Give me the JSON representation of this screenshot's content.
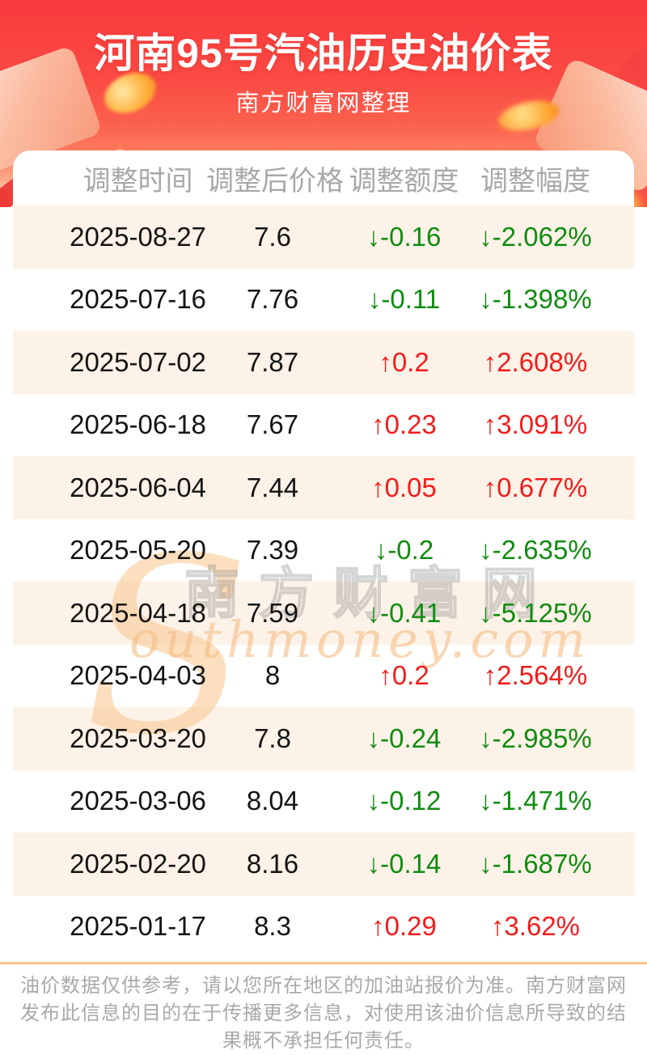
{
  "header": {
    "title": "河南95号汽油历史油价表",
    "subtitle": "南方财富网整理"
  },
  "table": {
    "columns": [
      "调整时间",
      "调整后价格",
      "调整额度",
      "调整幅度"
    ],
    "arrow_up": "↑",
    "arrow_down": "↓",
    "rows": [
      {
        "date": "2025-08-27",
        "price": "7.6",
        "change": "-0.16",
        "pct": "-2.062%",
        "dir": "down"
      },
      {
        "date": "2025-07-16",
        "price": "7.76",
        "change": "-0.11",
        "pct": "-1.398%",
        "dir": "down"
      },
      {
        "date": "2025-07-02",
        "price": "7.87",
        "change": "0.2",
        "pct": "2.608%",
        "dir": "up"
      },
      {
        "date": "2025-06-18",
        "price": "7.67",
        "change": "0.23",
        "pct": "3.091%",
        "dir": "up"
      },
      {
        "date": "2025-06-04",
        "price": "7.44",
        "change": "0.05",
        "pct": "0.677%",
        "dir": "up"
      },
      {
        "date": "2025-05-20",
        "price": "7.39",
        "change": "-0.2",
        "pct": "-2.635%",
        "dir": "down"
      },
      {
        "date": "2025-04-18",
        "price": "7.59",
        "change": "-0.41",
        "pct": "-5.125%",
        "dir": "down"
      },
      {
        "date": "2025-04-03",
        "price": "8",
        "change": "0.2",
        "pct": "2.564%",
        "dir": "up"
      },
      {
        "date": "2025-03-20",
        "price": "7.8",
        "change": "-0.24",
        "pct": "-2.985%",
        "dir": "down"
      },
      {
        "date": "2025-03-06",
        "price": "8.04",
        "change": "-0.12",
        "pct": "-1.471%",
        "dir": "down"
      },
      {
        "date": "2025-02-20",
        "price": "8.16",
        "change": "-0.14",
        "pct": "-1.687%",
        "dir": "down"
      },
      {
        "date": "2025-01-17",
        "price": "8.3",
        "change": "0.29",
        "pct": "3.62%",
        "dir": "up"
      }
    ]
  },
  "watermark": {
    "initial": "S",
    "cn": "南方财富网",
    "en": "outhmoney.com"
  },
  "footer": {
    "lines": [
      "油价数据仅供参考，请以您所在地区的加油站报价为准。南方财富网",
      "发布此信息的目的在于传播更多信息，对使用该油价信息所导致的结",
      "果概不承担任何责任。"
    ]
  },
  "colors": {
    "banner_red_top": "#f93a3d",
    "up_red": "#f11c1c",
    "down_green": "#0f8c0f",
    "row_alt_bg": "#fdf2e8",
    "header_text_gray": "#a8a8a8",
    "divider_orange": "#f7c48b"
  }
}
